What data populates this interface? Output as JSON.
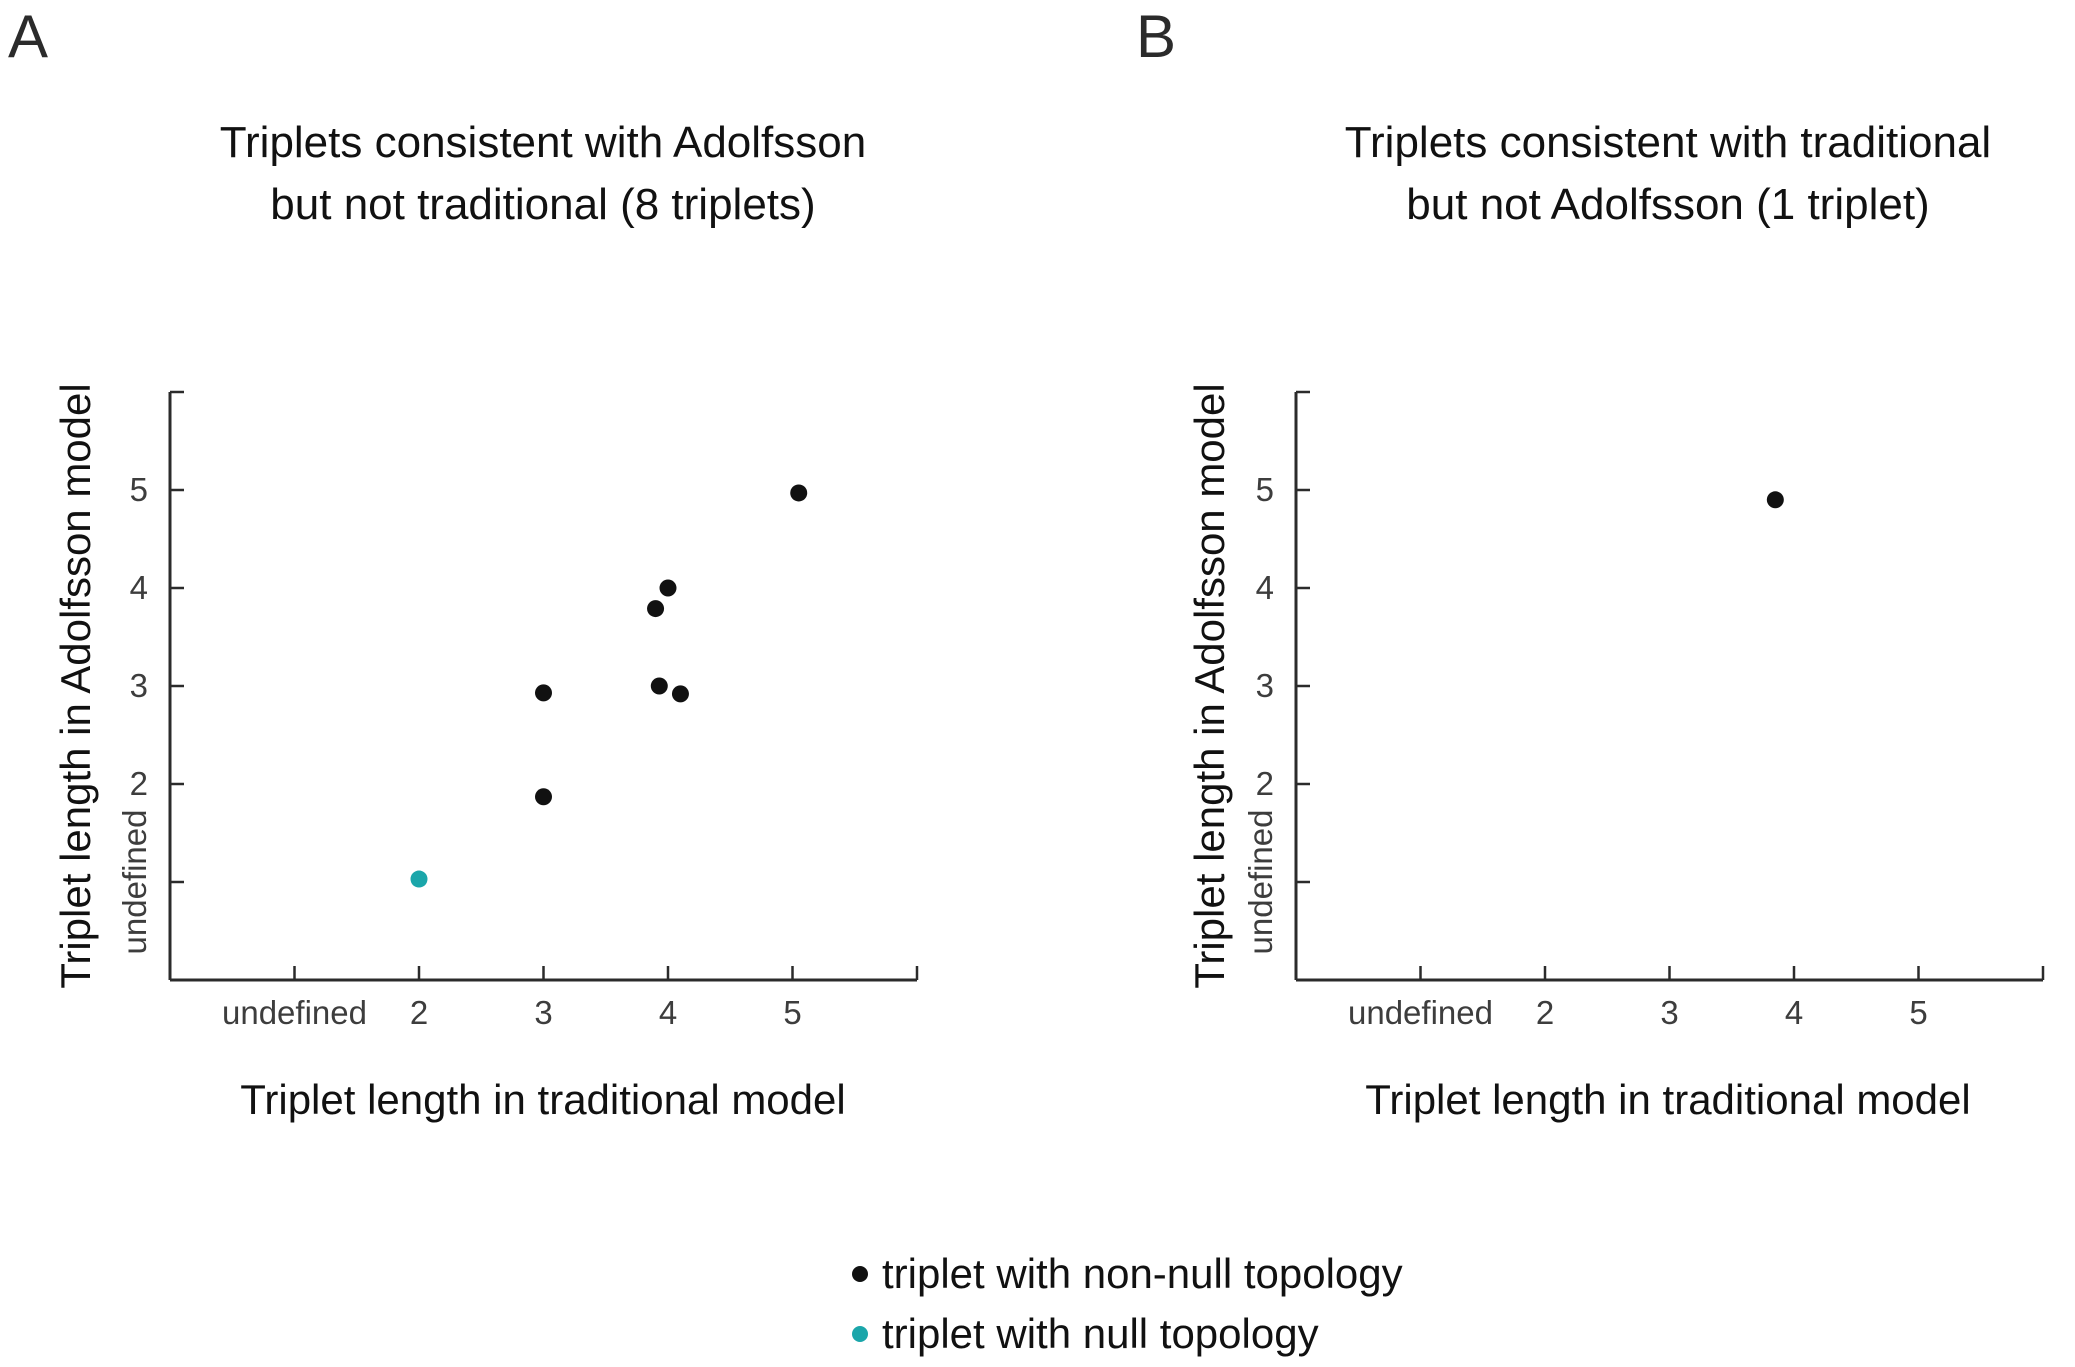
{
  "figure": {
    "panel_a_letter": "A",
    "panel_b_letter": "B",
    "legend": {
      "items": [
        {
          "label": "triplet with non-null topology",
          "color": "#111111"
        },
        {
          "label": "triplet with null topology",
          "color": "#1ba6aa"
        }
      ]
    }
  },
  "chart_data": [
    {
      "type": "scatter",
      "panel": "a",
      "title_lines": [
        "Triplets consistent with Adolfsson",
        "but not traditional (8 triplets)"
      ],
      "xlabel": "Triplet length in traditional model",
      "ylabel": "Triplet length in Adolfsson model",
      "xlim": [
        0,
        6
      ],
      "ylim": [
        0,
        6
      ],
      "grid": false,
      "xticks": [
        {
          "v": 1,
          "label": "undefined"
        },
        {
          "v": 2,
          "label": "2"
        },
        {
          "v": 3,
          "label": "3"
        },
        {
          "v": 4,
          "label": "4"
        },
        {
          "v": 5,
          "label": "5"
        },
        {
          "v": 6,
          "label": ""
        }
      ],
      "yticks": [
        {
          "v": 1,
          "label": "undefined"
        },
        {
          "v": 2,
          "label": "2"
        },
        {
          "v": 3,
          "label": "3"
        },
        {
          "v": 4,
          "label": "4"
        },
        {
          "v": 5,
          "label": "5"
        },
        {
          "v": 6,
          "label": ""
        }
      ],
      "series": [
        {
          "name": "triplet with non-null topology",
          "color": "#111111",
          "points": [
            [
              3.0,
              1.87
            ],
            [
              3.0,
              2.93
            ],
            [
              3.9,
              3.79
            ],
            [
              3.93,
              3.0
            ],
            [
              4.0,
              4.0
            ],
            [
              4.1,
              2.92
            ],
            [
              5.05,
              4.97
            ]
          ]
        },
        {
          "name": "triplet with null topology",
          "color": "#1ba6aa",
          "points": [
            [
              2.0,
              1.03
            ]
          ]
        }
      ]
    },
    {
      "type": "scatter",
      "panel": "b",
      "title_lines": [
        "Triplets consistent with traditional",
        "but not Adolfsson (1 triplet)"
      ],
      "xlabel": "Triplet length in traditional model",
      "ylabel": "Triplet length in Adolfsson model",
      "xlim": [
        0,
        6
      ],
      "ylim": [
        0,
        6
      ],
      "grid": false,
      "xticks": [
        {
          "v": 1,
          "label": "undefined"
        },
        {
          "v": 2,
          "label": "2"
        },
        {
          "v": 3,
          "label": "3"
        },
        {
          "v": 4,
          "label": "4"
        },
        {
          "v": 5,
          "label": "5"
        },
        {
          "v": 6,
          "label": ""
        }
      ],
      "yticks": [
        {
          "v": 1,
          "label": "undefined"
        },
        {
          "v": 2,
          "label": "2"
        },
        {
          "v": 3,
          "label": "3"
        },
        {
          "v": 4,
          "label": "4"
        },
        {
          "v": 5,
          "label": "5"
        },
        {
          "v": 6,
          "label": ""
        }
      ],
      "series": [
        {
          "name": "triplet with non-null topology",
          "color": "#111111",
          "points": [
            [
              3.85,
              4.9
            ]
          ]
        },
        {
          "name": "triplet with null topology",
          "color": "#1ba6aa",
          "points": []
        }
      ]
    }
  ]
}
